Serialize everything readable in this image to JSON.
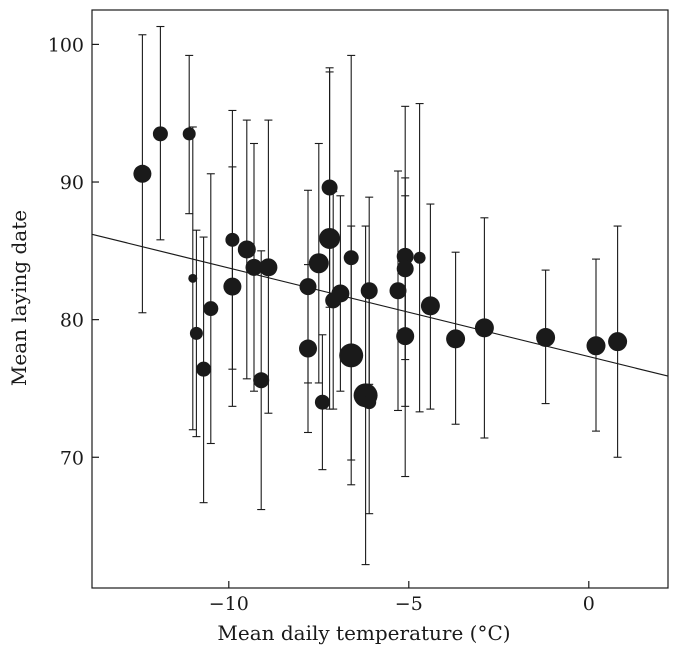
{
  "chart_data": {
    "type": "scatter",
    "title": "",
    "xlabel": "Mean daily temperature (°C)",
    "ylabel": "Mean laying date",
    "xlim": [
      -13.8,
      2.2
    ],
    "ylim": [
      60.5,
      102.5
    ],
    "x_ticks": [
      -10,
      -5,
      0
    ],
    "x_tick_labels": [
      "−10",
      "−5",
      "0"
    ],
    "y_ticks": [
      70,
      80,
      90,
      100
    ],
    "y_tick_labels": [
      "70",
      "80",
      "90",
      "100"
    ],
    "grid": false,
    "legend": "none",
    "marker_color": "#1a1a1a",
    "trend_line": {
      "x": [
        -13.8,
        2.2
      ],
      "y": [
        86.2,
        75.9
      ]
    },
    "points": [
      {
        "x": -12.4,
        "y": 90.6,
        "lo": 80.5,
        "hi": 100.7,
        "size": 9
      },
      {
        "x": -11.9,
        "y": 93.5,
        "lo": 85.8,
        "hi": 101.3,
        "size": 7.5
      },
      {
        "x": -11.1,
        "y": 93.5,
        "lo": 87.7,
        "hi": 99.2,
        "size": 6.5
      },
      {
        "x": -11.0,
        "y": 83.0,
        "lo": 72.0,
        "hi": 94.0,
        "size": 4.5
      },
      {
        "x": -10.9,
        "y": 79.0,
        "lo": 71.5,
        "hi": 86.5,
        "size": 6.5
      },
      {
        "x": -10.7,
        "y": 76.4,
        "lo": 66.7,
        "hi": 86.0,
        "size": 7.5
      },
      {
        "x": -10.5,
        "y": 80.8,
        "lo": 71.0,
        "hi": 90.6,
        "size": 7.5
      },
      {
        "x": -9.9,
        "y": 85.8,
        "lo": 76.4,
        "hi": 95.2,
        "size": 7
      },
      {
        "x": -9.9,
        "y": 82.4,
        "lo": 73.7,
        "hi": 91.1,
        "size": 9
      },
      {
        "x": -9.5,
        "y": 85.1,
        "lo": 75.7,
        "hi": 94.5,
        "size": 9
      },
      {
        "x": -9.3,
        "y": 83.8,
        "lo": 74.8,
        "hi": 92.8,
        "size": 8.5
      },
      {
        "x": -9.1,
        "y": 75.6,
        "lo": 66.2,
        "hi": 85.0,
        "size": 8
      },
      {
        "x": -8.9,
        "y": 83.8,
        "lo": 73.2,
        "hi": 94.5,
        "size": 9
      },
      {
        "x": -7.8,
        "y": 82.4,
        "lo": 75.4,
        "hi": 89.4,
        "size": 8.5
      },
      {
        "x": -7.8,
        "y": 77.9,
        "lo": 71.8,
        "hi": 84.0,
        "size": 9
      },
      {
        "x": -7.5,
        "y": 84.1,
        "lo": 75.4,
        "hi": 92.8,
        "size": 10
      },
      {
        "x": -7.4,
        "y": 74.0,
        "lo": 69.1,
        "hi": 78.9,
        "size": 7.5
      },
      {
        "x": -7.2,
        "y": 85.9,
        "lo": 73.5,
        "hi": 98.0,
        "size": 10.5
      },
      {
        "x": -7.2,
        "y": 89.6,
        "lo": 80.9,
        "hi": 98.3,
        "size": 8
      },
      {
        "x": -7.1,
        "y": 81.4,
        "lo": 73.5,
        "hi": 89.3,
        "size": 8
      },
      {
        "x": -6.9,
        "y": 81.9,
        "lo": 74.8,
        "hi": 89.0,
        "size": 9
      },
      {
        "x": -6.6,
        "y": 84.5,
        "lo": 69.8,
        "hi": 99.2,
        "size": 7.5
      },
      {
        "x": -6.6,
        "y": 77.4,
        "lo": 68.0,
        "hi": 86.8,
        "size": 12
      },
      {
        "x": -6.2,
        "y": 74.5,
        "lo": 62.2,
        "hi": 86.8,
        "size": 12
      },
      {
        "x": -6.1,
        "y": 74.0,
        "lo": 65.9,
        "hi": 82.1,
        "size": 7
      },
      {
        "x": -6.1,
        "y": 82.1,
        "lo": 75.3,
        "hi": 88.9,
        "size": 8.5
      },
      {
        "x": -5.3,
        "y": 82.1,
        "lo": 73.4,
        "hi": 90.8,
        "size": 8.5
      },
      {
        "x": -5.1,
        "y": 84.6,
        "lo": 73.7,
        "hi": 95.5,
        "size": 8.5
      },
      {
        "x": -5.1,
        "y": 83.7,
        "lo": 77.1,
        "hi": 90.3,
        "size": 8.5
      },
      {
        "x": -5.1,
        "y": 78.8,
        "lo": 68.6,
        "hi": 89.0,
        "size": 9
      },
      {
        "x": -4.7,
        "y": 84.5,
        "lo": 73.3,
        "hi": 95.7,
        "size": 6
      },
      {
        "x": -4.4,
        "y": 81.0,
        "lo": 73.5,
        "hi": 88.4,
        "size": 9.5
      },
      {
        "x": -3.7,
        "y": 78.6,
        "lo": 72.4,
        "hi": 84.9,
        "size": 9.5
      },
      {
        "x": -2.9,
        "y": 79.4,
        "lo": 71.4,
        "hi": 87.4,
        "size": 9.5
      },
      {
        "x": -1.2,
        "y": 78.7,
        "lo": 73.9,
        "hi": 83.6,
        "size": 9.5
      },
      {
        "x": 0.2,
        "y": 78.1,
        "lo": 71.9,
        "hi": 84.4,
        "size": 9.5
      },
      {
        "x": 0.8,
        "y": 78.4,
        "lo": 70.0,
        "hi": 86.8,
        "size": 9.5
      }
    ]
  }
}
